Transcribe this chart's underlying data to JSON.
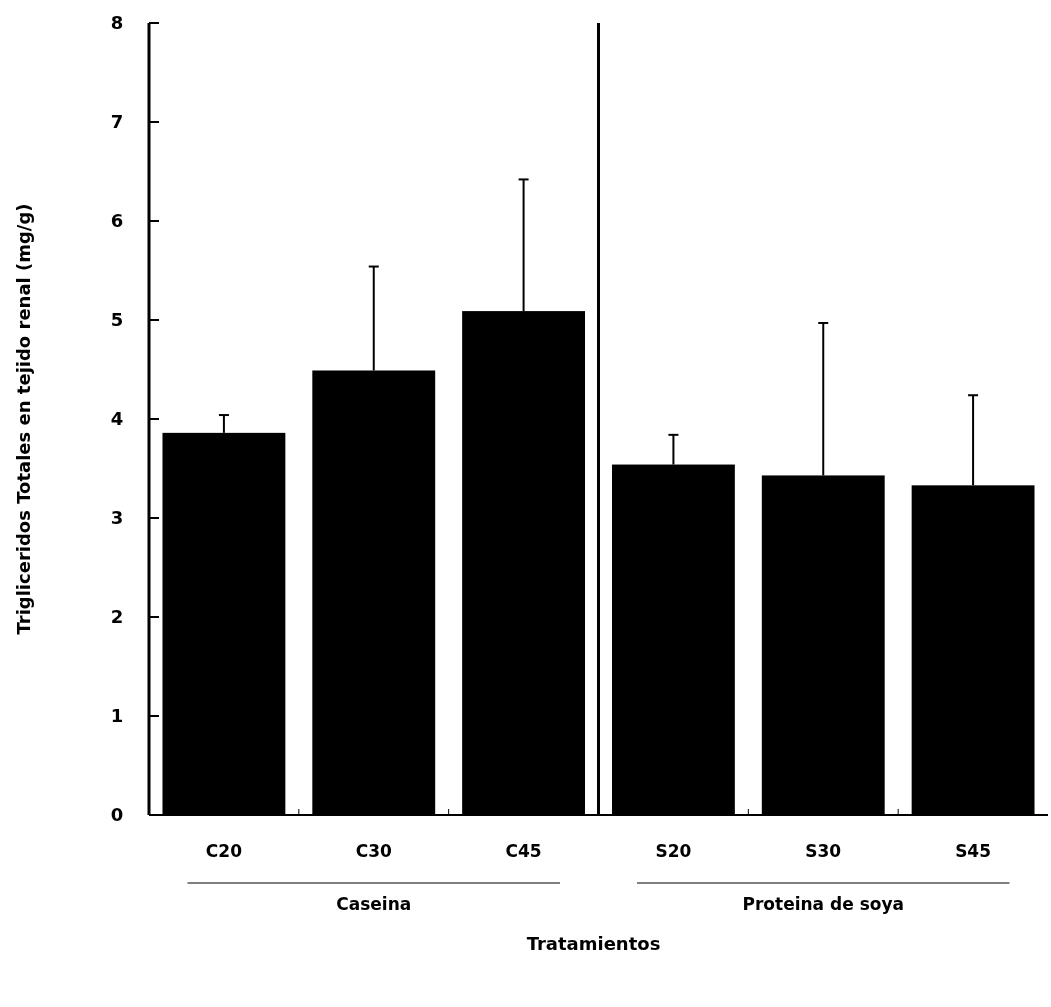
{
  "chart_data": {
    "type": "bar",
    "ylabel": "Trigliceridos Totales en tejido renal (mg/g)",
    "xlabel": "Tratamientos",
    "categories": [
      "C20",
      "C30",
      "C45",
      "S20",
      "S30",
      "S45"
    ],
    "values": [
      3.86,
      4.49,
      5.09,
      3.54,
      3.43,
      3.33
    ],
    "errors": [
      [
        3.86,
        4.04
      ],
      [
        4.49,
        5.54
      ],
      [
        5.09,
        6.42
      ],
      [
        3.54,
        3.84
      ],
      [
        3.43,
        4.97
      ],
      [
        3.33,
        4.24
      ]
    ],
    "color": "#000000",
    "ylim": [
      0,
      8
    ],
    "yticks": [
      0,
      1,
      2,
      3,
      4,
      5,
      6,
      7,
      8
    ],
    "grid": false,
    "annotations": [
      "Caseina",
      "Proteina de soya"
    ]
  }
}
